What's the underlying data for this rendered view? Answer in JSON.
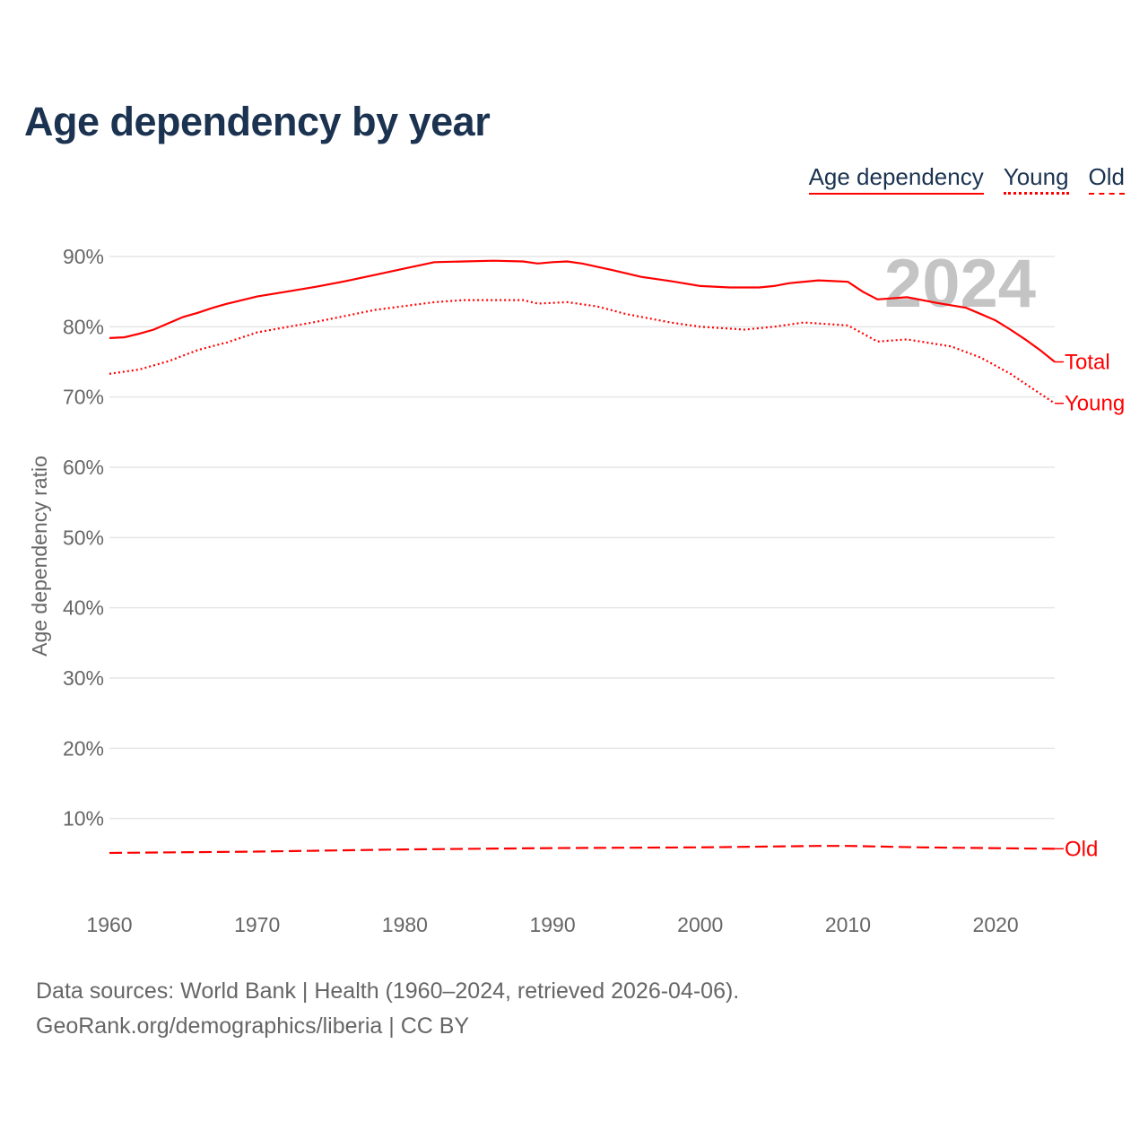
{
  "chart_data": {
    "type": "line",
    "title": "Age dependency by year",
    "xlabel": "",
    "ylabel": "Age dependency ratio",
    "xlim": [
      1960,
      2024
    ],
    "ylim": [
      0,
      90
    ],
    "yticks": [
      10,
      20,
      30,
      40,
      50,
      60,
      70,
      80,
      90
    ],
    "ytick_labels": [
      "10%",
      "20%",
      "30%",
      "40%",
      "50%",
      "60%",
      "70%",
      "80%",
      "90%"
    ],
    "xticks": [
      1960,
      1970,
      1980,
      1990,
      2000,
      2010,
      2020
    ],
    "xtick_labels": [
      "1960",
      "1970",
      "1980",
      "1990",
      "2000",
      "2010",
      "2020"
    ],
    "grid": true,
    "year_watermark": "2024",
    "legend": [
      "Age dependency",
      "Young",
      "Old"
    ],
    "legend_placement": "top-right",
    "series": [
      {
        "name": "Total",
        "style": "solid",
        "x": [
          1960,
          1961,
          1962,
          1963,
          1964,
          1965,
          1966,
          1967,
          1968,
          1969,
          1970,
          1972,
          1974,
          1976,
          1978,
          1980,
          1982,
          1984,
          1986,
          1988,
          1989,
          1990,
          1991,
          1992,
          1994,
          1996,
          1998,
          2000,
          2002,
          2004,
          2005,
          2006,
          2008,
          2009,
          2010,
          2011,
          2012,
          2014,
          2016,
          2018,
          2019,
          2020,
          2021,
          2022,
          2023,
          2024
        ],
        "y": [
          78.4,
          78.5,
          79.0,
          79.6,
          80.5,
          81.4,
          82.0,
          82.7,
          83.3,
          83.8,
          84.3,
          85.0,
          85.7,
          86.5,
          87.4,
          88.3,
          89.2,
          89.3,
          89.4,
          89.3,
          89.0,
          89.2,
          89.3,
          89.0,
          88.1,
          87.1,
          86.5,
          85.8,
          85.6,
          85.6,
          85.8,
          86.2,
          86.6,
          86.5,
          86.4,
          85.0,
          83.9,
          84.2,
          83.4,
          82.7,
          81.8,
          80.9,
          79.6,
          78.2,
          76.7,
          75.0
        ]
      },
      {
        "name": "Young",
        "style": "dotted",
        "x": [
          1960,
          1962,
          1964,
          1966,
          1968,
          1970,
          1974,
          1978,
          1982,
          1984,
          1988,
          1989,
          1991,
          1993,
          1995,
          1998,
          2000,
          2003,
          2005,
          2007,
          2010,
          2012,
          2014,
          2017,
          2019,
          2021,
          2023,
          2024
        ],
        "y": [
          73.3,
          73.9,
          75.1,
          76.7,
          77.8,
          79.2,
          80.7,
          82.4,
          83.5,
          83.8,
          83.8,
          83.3,
          83.5,
          82.9,
          81.8,
          80.6,
          80.0,
          79.6,
          80.0,
          80.6,
          80.2,
          77.9,
          78.2,
          77.2,
          75.6,
          73.3,
          70.5,
          69.1
        ]
      },
      {
        "name": "Old",
        "style": "dashed",
        "x": [
          1960,
          1970,
          1980,
          1990,
          2000,
          2008,
          2010,
          2015,
          2024
        ],
        "y": [
          5.1,
          5.3,
          5.6,
          5.8,
          5.9,
          6.1,
          6.1,
          5.9,
          5.7
        ]
      }
    ]
  },
  "footer": {
    "line1": "Data sources: World Bank | Health (1960–2024, retrieved 2026-04-06).",
    "line2": "GeoRank.org/demographics/liberia | CC BY"
  }
}
